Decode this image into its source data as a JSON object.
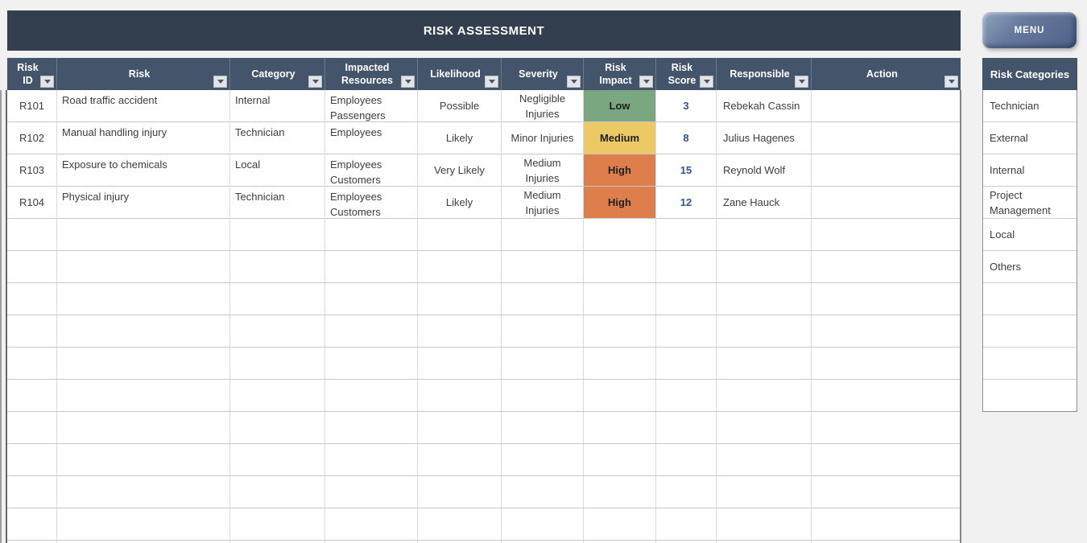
{
  "title": "RISK ASSESSMENT",
  "menu_button": "MENU",
  "colors": {
    "title_bg": "#333F4F",
    "header_bg": "#44546A",
    "impact_low": "#7AA780",
    "impact_medium": "#EDC966",
    "impact_high": "#DF7E4D",
    "score_text": "#305496"
  },
  "table": {
    "columns": [
      {
        "label": "Risk\nID"
      },
      {
        "label": "Risk"
      },
      {
        "label": "Category"
      },
      {
        "label": "Impacted\nResources"
      },
      {
        "label": "Likelihood"
      },
      {
        "label": "Severity"
      },
      {
        "label": "Risk\nImpact"
      },
      {
        "label": "Risk\nScore"
      },
      {
        "label": "Responsible"
      },
      {
        "label": "Action"
      }
    ],
    "rows": [
      {
        "id": "R101",
        "risk": "Road traffic accident",
        "category": "Internal",
        "impacted": "Employees\nPassengers",
        "likelihood": "Possible",
        "severity": "Negligible\nInjuries",
        "impact": "Low",
        "impact_level": "low",
        "score": "3",
        "responsible": "Rebekah Cassin",
        "action": ""
      },
      {
        "id": "R102",
        "risk": "Manual handling injury",
        "category": "Technician",
        "impacted": "Employees",
        "likelihood": "Likely",
        "severity": "Minor Injuries",
        "impact": "Medium",
        "impact_level": "medium",
        "score": "8",
        "responsible": "Julius Hagenes",
        "action": ""
      },
      {
        "id": "R103",
        "risk": "Exposure to chemicals",
        "category": "Local",
        "impacted": "Employees\nCustomers",
        "likelihood": "Very Likely",
        "severity": "Medium\nInjuries",
        "impact": "High",
        "impact_level": "high",
        "score": "15",
        "responsible": "Reynold Wolf",
        "action": ""
      },
      {
        "id": "R104",
        "risk": "Physical injury",
        "category": "Technician",
        "impacted": "Employees\nCustomers",
        "likelihood": "Likely",
        "severity": "Medium\nInjuries",
        "impact": "High",
        "impact_level": "high",
        "score": "12",
        "responsible": "Zane Hauck",
        "action": ""
      }
    ]
  },
  "sidebar": {
    "header": "Risk Categories",
    "items": [
      "Technician",
      "External",
      "Internal",
      "Project Management",
      "Local",
      "Others"
    ]
  }
}
